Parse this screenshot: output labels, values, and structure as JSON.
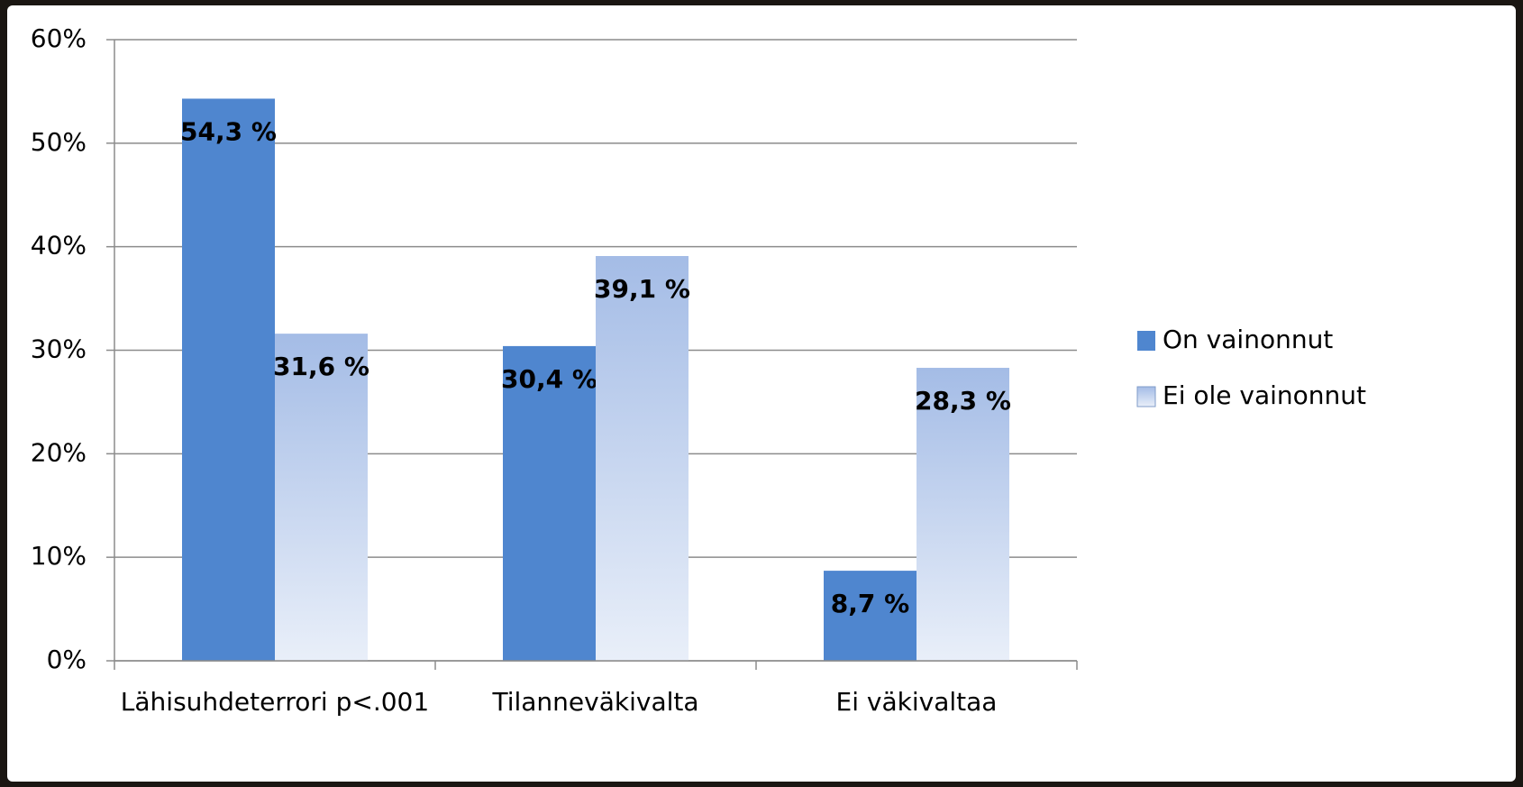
{
  "chart_data": {
    "type": "bar",
    "categories": [
      "Lähisuhdeterrori p<.001",
      "Tilanneväkivalta",
      "Ei väkivaltaa"
    ],
    "series": [
      {
        "name": "On vainonnut",
        "color": "#4f86cf",
        "values": [
          54.3,
          30.4,
          8.7
        ],
        "value_labels": [
          "54,3 %",
          "30,4 %",
          "8,7 %"
        ]
      },
      {
        "name": "Ei ole vainonnut",
        "color": "#a4bce6",
        "values": [
          31.6,
          39.1,
          28.3
        ],
        "value_labels": [
          "31,6 %",
          "39,1 %",
          "28,3 %"
        ]
      }
    ],
    "ylim": [
      0,
      60
    ],
    "yticks": [
      {
        "value": 0,
        "label": "0%"
      },
      {
        "value": 10,
        "label": "10%"
      },
      {
        "value": 20,
        "label": "20%"
      },
      {
        "value": 30,
        "label": "30%"
      },
      {
        "value": 40,
        "label": "40%"
      },
      {
        "value": 50,
        "label": "50%"
      },
      {
        "value": 60,
        "label": "60%"
      }
    ],
    "grid": true,
    "legend": "right"
  }
}
